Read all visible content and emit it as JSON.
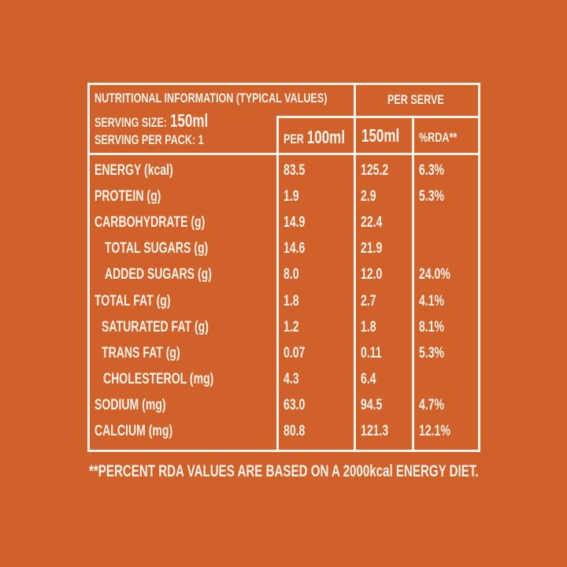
{
  "header": {
    "title": "NUTRITIONAL INFORMATION (TYPICAL VALUES)",
    "serving_size_label": "SERVING SIZE:",
    "serving_size_value": "150ml",
    "serving_per_pack": "SERVING PER PACK: 1",
    "per_serve": "PER SERVE",
    "col_per100_prefix": "PER",
    "col_per100_value": "100ml",
    "col_serve": "150ml",
    "col_rda": "%RDA**"
  },
  "rows": [
    {
      "label": "ENERGY (kcal)",
      "per100": "83.5",
      "serve": "125.2",
      "rda": "6.3%"
    },
    {
      "label": "PROTEIN (g)",
      "per100": "1.9",
      "serve": "2.9",
      "rda": "5.3%"
    },
    {
      "label": "CARBOHYDRATE (g)",
      "per100": "14.9",
      "serve": "22.4",
      "rda": ""
    },
    {
      "label": "TOTAL SUGARS (g)",
      "per100": "14.6",
      "serve": "21.9",
      "rda": ""
    },
    {
      "label": "ADDED SUGARS (g)",
      "per100": "8.0",
      "serve": "12.0",
      "rda": "24.0%"
    },
    {
      "label": "TOTAL FAT (g)",
      "per100": "1.8",
      "serve": "2.7",
      "rda": "4.1%"
    },
    {
      "label": "SATURATED FAT (g)",
      "per100": "1.2",
      "serve": "1.8",
      "rda": "8.1%"
    },
    {
      "label": "TRANS FAT (g)",
      "per100": "0.07",
      "serve": "0.11",
      "rda": "5.3%"
    },
    {
      "label": "CHOLESTEROL (mg)",
      "per100": "4.3",
      "serve": "6.4",
      "rda": ""
    },
    {
      "label": "SODIUM (mg)",
      "per100": "63.0",
      "serve": "94.5",
      "rda": "4.7%"
    },
    {
      "label": "CALCIUM (mg)",
      "per100": "80.8",
      "serve": "121.3",
      "rda": "12.1%"
    }
  ],
  "footnote": "**PERCENT RDA VALUES ARE BASED ON A 2000kcal ENERGY DIET."
}
